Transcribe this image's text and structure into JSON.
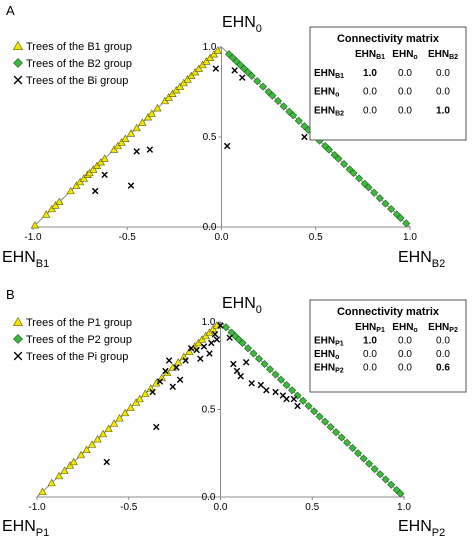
{
  "chart_data": [
    {
      "type": "scatter",
      "panel_label": "A",
      "axes": {
        "top": {
          "base": "EHN",
          "sub": "0"
        },
        "left": {
          "base": "EHN",
          "sub": "B1"
        },
        "right": {
          "base": "EHN",
          "sub": "B2"
        }
      },
      "x_ticks": [
        "-1.0",
        "-0.5",
        "0.0",
        "0.5",
        "1.0"
      ],
      "y_ticks": [
        "0.0",
        "0.5",
        "1.0"
      ],
      "xlim": [
        -1,
        1
      ],
      "ylim": [
        0,
        1
      ],
      "series": [
        {
          "name": "Trees of the B1 group",
          "marker": "triangle",
          "color": "#f2e600",
          "points": [
            [
              -0.99,
              0.01
            ],
            [
              -0.93,
              0.07
            ],
            [
              -0.9,
              0.1
            ],
            [
              -0.88,
              0.12
            ],
            [
              -0.86,
              0.14
            ],
            [
              -0.8,
              0.2
            ],
            [
              -0.77,
              0.23
            ],
            [
              -0.75,
              0.25
            ],
            [
              -0.73,
              0.27
            ],
            [
              -0.71,
              0.29
            ],
            [
              -0.7,
              0.3
            ],
            [
              -0.68,
              0.32
            ],
            [
              -0.66,
              0.34
            ],
            [
              -0.64,
              0.36
            ],
            [
              -0.62,
              0.38
            ],
            [
              -0.57,
              0.43
            ],
            [
              -0.55,
              0.45
            ],
            [
              -0.53,
              0.47
            ],
            [
              -0.51,
              0.49
            ],
            [
              -0.48,
              0.52
            ],
            [
              -0.45,
              0.55
            ],
            [
              -0.42,
              0.58
            ],
            [
              -0.39,
              0.61
            ],
            [
              -0.37,
              0.63
            ],
            [
              -0.34,
              0.66
            ],
            [
              -0.3,
              0.7
            ],
            [
              -0.28,
              0.72
            ],
            [
              -0.26,
              0.74
            ],
            [
              -0.24,
              0.76
            ],
            [
              -0.22,
              0.78
            ],
            [
              -0.2,
              0.8
            ],
            [
              -0.18,
              0.82
            ],
            [
              -0.16,
              0.84
            ],
            [
              -0.14,
              0.86
            ],
            [
              -0.12,
              0.88
            ],
            [
              -0.1,
              0.9
            ],
            [
              -0.08,
              0.92
            ],
            [
              -0.06,
              0.94
            ],
            [
              -0.04,
              0.96
            ],
            [
              -0.02,
              0.98
            ]
          ]
        },
        {
          "name": "Trees of the B2 group",
          "marker": "diamond",
          "color": "#3dba3d",
          "points": [
            [
              0.04,
              0.96
            ],
            [
              0.06,
              0.94
            ],
            [
              0.08,
              0.92
            ],
            [
              0.1,
              0.9
            ],
            [
              0.12,
              0.88
            ],
            [
              0.14,
              0.86
            ],
            [
              0.16,
              0.84
            ],
            [
              0.19,
              0.81
            ],
            [
              0.22,
              0.78
            ],
            [
              0.25,
              0.75
            ],
            [
              0.27,
              0.73
            ],
            [
              0.3,
              0.7
            ],
            [
              0.33,
              0.67
            ],
            [
              0.36,
              0.64
            ],
            [
              0.38,
              0.62
            ],
            [
              0.41,
              0.59
            ],
            [
              0.44,
              0.56
            ],
            [
              0.46,
              0.54
            ],
            [
              0.49,
              0.51
            ],
            [
              0.52,
              0.48
            ],
            [
              0.55,
              0.45
            ],
            [
              0.57,
              0.43
            ],
            [
              0.6,
              0.4
            ],
            [
              0.62,
              0.38
            ],
            [
              0.65,
              0.35
            ],
            [
              0.68,
              0.32
            ],
            [
              0.7,
              0.3
            ],
            [
              0.73,
              0.27
            ],
            [
              0.76,
              0.24
            ],
            [
              0.78,
              0.22
            ],
            [
              0.81,
              0.19
            ],
            [
              0.84,
              0.16
            ],
            [
              0.87,
              0.13
            ],
            [
              0.9,
              0.1
            ],
            [
              0.93,
              0.07
            ],
            [
              0.95,
              0.05
            ],
            [
              0.98,
              0.02
            ]
          ]
        },
        {
          "name": "Trees of the Bi group",
          "marker": "x",
          "color": "#000000",
          "points": [
            [
              0.07,
              0.87
            ],
            [
              0.11,
              0.83
            ],
            [
              0.03,
              0.45
            ],
            [
              0.44,
              0.5
            ],
            [
              -0.48,
              0.23
            ],
            [
              -0.67,
              0.2
            ],
            [
              -0.45,
              0.42
            ],
            [
              -0.38,
              0.43
            ],
            [
              -0.62,
              0.29
            ],
            [
              -0.03,
              0.88
            ]
          ]
        }
      ],
      "connectivity_matrix": {
        "title": "Connectivity matrix",
        "columns": [
          {
            "base": "EHN",
            "sub": "B1"
          },
          {
            "base": "EHN",
            "sub": "o"
          },
          {
            "base": "EHN",
            "sub": "B2"
          }
        ],
        "rows": [
          {
            "label": {
              "base": "EHN",
              "sub": "B1"
            },
            "values": [
              "1.0",
              "0.0",
              "0.0"
            ],
            "bold": [
              true,
              false,
              false
            ]
          },
          {
            "label": {
              "base": "EHN",
              "sub": "o"
            },
            "values": [
              "0.0",
              "0.0",
              "0.0"
            ],
            "bold": [
              false,
              false,
              false
            ]
          },
          {
            "label": {
              "base": "EHN",
              "sub": "B2"
            },
            "values": [
              "0.0",
              "0.0",
              "1.0"
            ],
            "bold": [
              false,
              false,
              true
            ]
          }
        ]
      }
    },
    {
      "type": "scatter",
      "panel_label": "B",
      "axes": {
        "top": {
          "base": "EHN",
          "sub": "0"
        },
        "left": {
          "base": "EHN",
          "sub": "P1"
        },
        "right": {
          "base": "EHN",
          "sub": "P2"
        }
      },
      "x_ticks": [
        "-1.0",
        "-0.5",
        "0.0",
        "0.5",
        "1.0"
      ],
      "y_ticks": [
        "0.0",
        "0.5",
        "1.0"
      ],
      "xlim": [
        -1,
        1
      ],
      "ylim": [
        0,
        1
      ],
      "series": [
        {
          "name": "Trees of the P1 group",
          "marker": "triangle",
          "color": "#f2e600",
          "points": [
            [
              -0.97,
              0.03
            ],
            [
              -0.92,
              0.08
            ],
            [
              -0.88,
              0.12
            ],
            [
              -0.85,
              0.15
            ],
            [
              -0.82,
              0.18
            ],
            [
              -0.8,
              0.2
            ],
            [
              -0.76,
              0.24
            ],
            [
              -0.73,
              0.27
            ],
            [
              -0.7,
              0.3
            ],
            [
              -0.67,
              0.33
            ],
            [
              -0.64,
              0.36
            ],
            [
              -0.61,
              0.39
            ],
            [
              -0.58,
              0.42
            ],
            [
              -0.55,
              0.45
            ],
            [
              -0.52,
              0.48
            ],
            [
              -0.49,
              0.51
            ],
            [
              -0.46,
              0.54
            ],
            [
              -0.44,
              0.56
            ],
            [
              -0.41,
              0.59
            ],
            [
              -0.38,
              0.62
            ],
            [
              -0.35,
              0.65
            ],
            [
              -0.32,
              0.68
            ],
            [
              -0.29,
              0.71
            ],
            [
              -0.26,
              0.74
            ],
            [
              -0.23,
              0.77
            ],
            [
              -0.2,
              0.8
            ],
            [
              -0.17,
              0.83
            ],
            [
              -0.14,
              0.86
            ],
            [
              -0.12,
              0.88
            ],
            [
              -0.1,
              0.9
            ],
            [
              -0.08,
              0.92
            ],
            [
              -0.06,
              0.94
            ],
            [
              -0.04,
              0.96
            ],
            [
              -0.02,
              0.98
            ]
          ]
        },
        {
          "name": "Trees of the P2 group",
          "marker": "diamond",
          "color": "#3dba3d",
          "points": [
            [
              0.03,
              0.97
            ],
            [
              0.06,
              0.94
            ],
            [
              0.08,
              0.92
            ],
            [
              0.1,
              0.9
            ],
            [
              0.12,
              0.88
            ],
            [
              0.15,
              0.85
            ],
            [
              0.18,
              0.82
            ],
            [
              0.21,
              0.79
            ],
            [
              0.24,
              0.76
            ],
            [
              0.27,
              0.73
            ],
            [
              0.3,
              0.7
            ],
            [
              0.33,
              0.67
            ],
            [
              0.36,
              0.64
            ],
            [
              0.39,
              0.61
            ],
            [
              0.42,
              0.58
            ],
            [
              0.45,
              0.55
            ],
            [
              0.48,
              0.52
            ],
            [
              0.51,
              0.49
            ],
            [
              0.54,
              0.46
            ],
            [
              0.57,
              0.43
            ],
            [
              0.6,
              0.4
            ],
            [
              0.63,
              0.37
            ],
            [
              0.66,
              0.34
            ],
            [
              0.69,
              0.31
            ],
            [
              0.72,
              0.28
            ],
            [
              0.75,
              0.25
            ],
            [
              0.78,
              0.22
            ],
            [
              0.81,
              0.19
            ],
            [
              0.84,
              0.16
            ],
            [
              0.87,
              0.13
            ],
            [
              0.9,
              0.1
            ],
            [
              0.93,
              0.07
            ],
            [
              0.96,
              0.04
            ],
            [
              0.98,
              0.02
            ]
          ]
        },
        {
          "name": "Trees of the Pi group",
          "marker": "x",
          "color": "#000000",
          "points": [
            [
              0.0,
              0.98
            ],
            [
              -0.02,
              0.9
            ],
            [
              -0.05,
              0.88
            ],
            [
              -0.09,
              0.86
            ],
            [
              -0.13,
              0.84
            ],
            [
              -0.06,
              0.82
            ],
            [
              -0.11,
              0.79
            ],
            [
              -0.16,
              0.85
            ],
            [
              -0.19,
              0.78
            ],
            [
              -0.24,
              0.74
            ],
            [
              -0.28,
              0.78
            ],
            [
              -0.3,
              0.72
            ],
            [
              -0.22,
              0.67
            ],
            [
              -0.26,
              0.63
            ],
            [
              -0.33,
              0.66
            ],
            [
              -0.37,
              0.6
            ],
            [
              -0.35,
              0.4
            ],
            [
              -0.62,
              0.2
            ],
            [
              0.07,
              0.76
            ],
            [
              0.09,
              0.72
            ],
            [
              0.11,
              0.69
            ],
            [
              0.14,
              0.77
            ],
            [
              0.17,
              0.65
            ],
            [
              0.22,
              0.64
            ],
            [
              0.25,
              0.61
            ],
            [
              0.3,
              0.6
            ],
            [
              0.34,
              0.58
            ],
            [
              0.36,
              0.56
            ],
            [
              0.4,
              0.56
            ],
            [
              0.42,
              0.52
            ],
            [
              0.05,
              0.91
            ],
            [
              -0.03,
              0.93
            ]
          ]
        }
      ],
      "connectivity_matrix": {
        "title": "Connectivity matrix",
        "columns": [
          {
            "base": "EHN",
            "sub": "P1"
          },
          {
            "base": "EHN",
            "sub": "o"
          },
          {
            "base": "EHN",
            "sub": "P2"
          }
        ],
        "rows": [
          {
            "label": {
              "base": "EHN",
              "sub": "P1"
            },
            "values": [
              "1.0",
              "0.0",
              "0.0"
            ],
            "bold": [
              true,
              false,
              false
            ]
          },
          {
            "label": {
              "base": "EHN",
              "sub": "o"
            },
            "values": [
              "0.0",
              "0.0",
              "0.0"
            ],
            "bold": [
              false,
              false,
              false
            ]
          },
          {
            "label": {
              "base": "EHN",
              "sub": "P2"
            },
            "values": [
              "0.0",
              "0.0",
              "0.6"
            ],
            "bold": [
              false,
              false,
              true
            ]
          }
        ]
      }
    }
  ]
}
